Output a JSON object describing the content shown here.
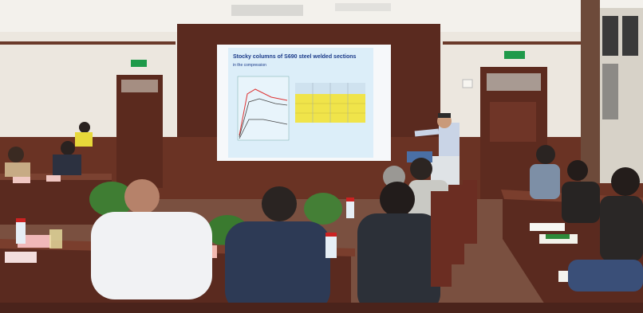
{
  "photo": {
    "slide": {
      "title": "Stocky columns of S690 steel welded sections",
      "subtitle": "in the compression"
    },
    "exit_sign_left": "",
    "exit_sign_right": "",
    "name_card": "",
    "colors": {
      "wall": "#ece7df",
      "wood": "#5a2a1f",
      "screen": "#e8f3fb",
      "slide_highlight": "#f0e44a"
    }
  }
}
